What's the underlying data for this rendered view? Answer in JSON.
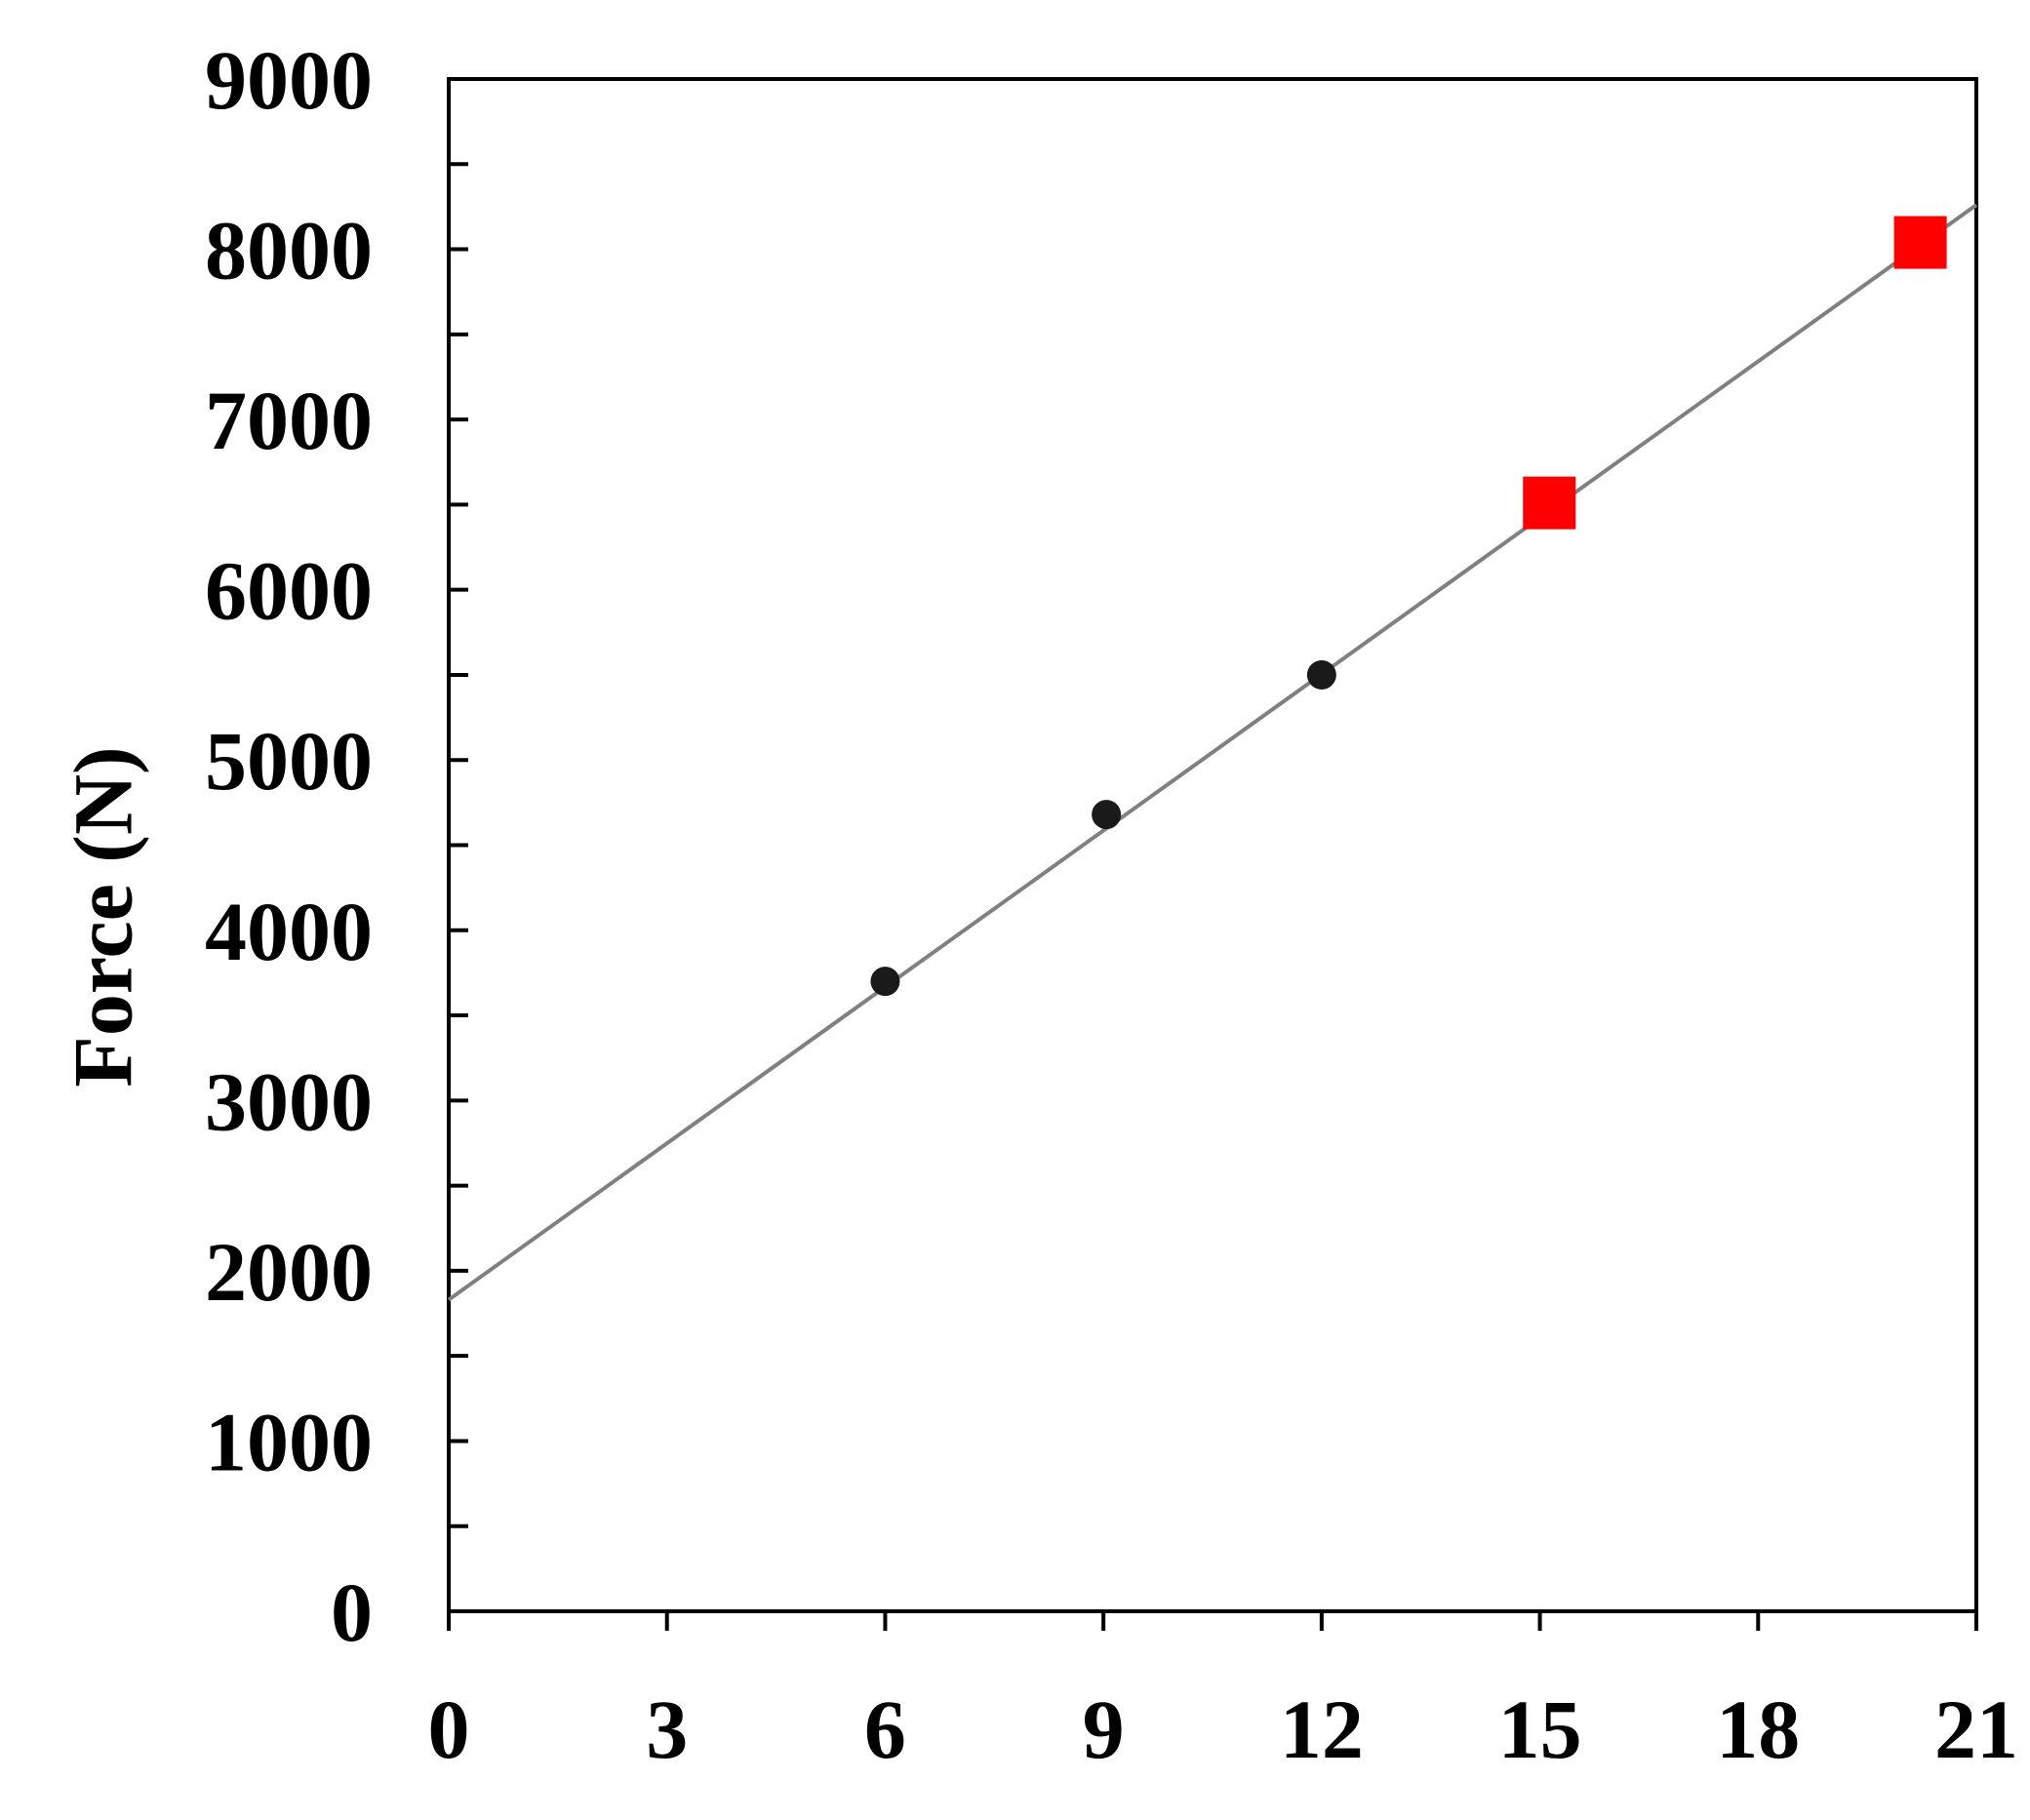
{
  "chart_data": {
    "type": "scatter",
    "y_label": "Force (N)",
    "xlim": [
      0,
      21
    ],
    "xticks": [
      0,
      3,
      6,
      9,
      12,
      15,
      18,
      21
    ],
    "ylim": [
      0,
      9000
    ],
    "yticks": [
      0,
      1000,
      2000,
      3000,
      4000,
      5000,
      6000,
      7000,
      8000,
      9000
    ],
    "yminor_ticks": [
      500,
      1500,
      2500,
      3500,
      4500,
      5500,
      6500,
      7500,
      8500
    ],
    "grid": false,
    "series": [
      {
        "marker": "line",
        "color": "#808080",
        "x": [
          0,
          21
        ],
        "values": [
          1830,
          8260
        ]
      },
      {
        "marker": "circle",
        "color": "#1a1a1a",
        "x": [
          6,
          9.04,
          12
        ],
        "values": [
          3700,
          4680,
          5500
        ]
      },
      {
        "marker": "square",
        "color": "#ff0000",
        "x": [
          15.13,
          20.23
        ],
        "values": [
          6510,
          8040
        ]
      }
    ]
  }
}
